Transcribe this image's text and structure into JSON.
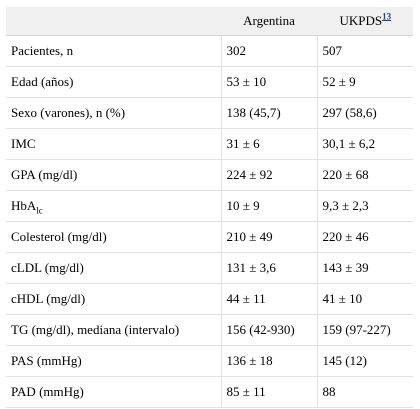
{
  "table": {
    "headers": {
      "blank": "",
      "col1": "Argentina",
      "col2": "UKPDS",
      "col2_ref": "13"
    },
    "rows": [
      {
        "label": "Pacientes, n",
        "label_sub": "",
        "argentina": "302",
        "ukpds": "507"
      },
      {
        "label": "Edad (años)",
        "label_sub": "",
        "argentina": "53 ± 10",
        "ukpds": "52 ± 9"
      },
      {
        "label": "Sexo (varones), n (%)",
        "label_sub": "",
        "argentina": "138 (45,7)",
        "ukpds": "297 (58,6)"
      },
      {
        "label": "IMC",
        "label_sub": "",
        "argentina": "31 ± 6",
        "ukpds": "30,1 ± 6,2"
      },
      {
        "label": "GPA (mg/dl)",
        "label_sub": "",
        "argentina": "224 ± 92",
        "ukpds": "220 ± 68"
      },
      {
        "label": "HbA",
        "label_sub": "lc",
        "argentina": "10 ± 9",
        "ukpds": "9,3 ± 2,3"
      },
      {
        "label": "Colesterol (mg/dl)",
        "label_sub": "",
        "argentina": "210 ± 49",
        "ukpds": "220 ± 46"
      },
      {
        "label": "cLDL (mg/dl)",
        "label_sub": "",
        "argentina": "131 ± 3,6",
        "ukpds": "143 ± 39"
      },
      {
        "label": "cHDL (mg/dl)",
        "label_sub": "",
        "argentina": "44 ± 11",
        "ukpds": "41 ± 10"
      },
      {
        "label": "TG (mg/dl), mediana (intervalo)",
        "label_sub": "",
        "argentina": "156 (42-930)",
        "ukpds": "159 (97-227)"
      },
      {
        "label": "PAS (mmHg)",
        "label_sub": "",
        "argentina": "136 ± 18",
        "ukpds": "145 (12)"
      },
      {
        "label": "PAD (mmHg)",
        "label_sub": "",
        "argentina": "85 ± 11",
        "ukpds": "88"
      }
    ]
  }
}
